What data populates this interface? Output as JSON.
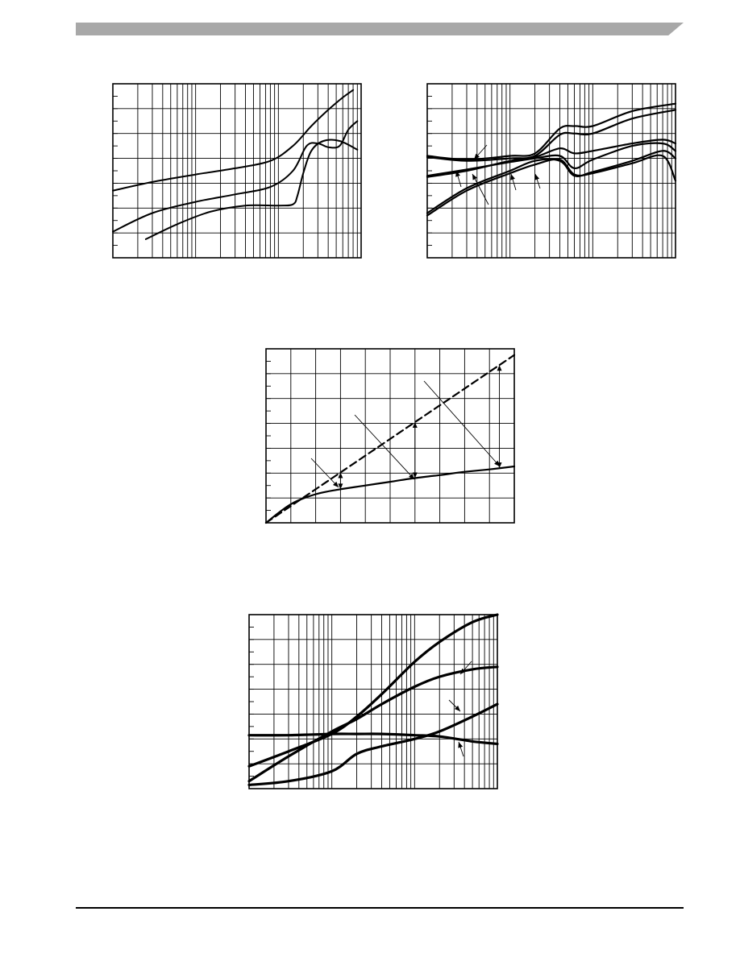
{
  "header": {
    "bar_color": "#a8a8a8"
  },
  "chart_data": [
    {
      "type": "line",
      "x_scale": "log",
      "xlim": [
        0.1,
        100
      ],
      "ylim": [
        0,
        7
      ],
      "y_divisions": 7,
      "grid": true,
      "series": [
        {
          "x": [
            0.1,
            0.3,
            1,
            3,
            8,
            15,
            25,
            40,
            60,
            80
          ],
          "y": [
            2.7,
            3.05,
            3.35,
            3.6,
            3.9,
            4.5,
            5.3,
            5.95,
            6.45,
            6.75
          ]
        },
        {
          "x": [
            0.1,
            0.3,
            1,
            3,
            8,
            15,
            22,
            30,
            40,
            55,
            70,
            90
          ],
          "y": [
            1.05,
            1.8,
            2.25,
            2.55,
            2.85,
            3.5,
            4.5,
            4.6,
            4.45,
            4.5,
            5.15,
            5.5
          ]
        },
        {
          "x": [
            0.25,
            0.6,
            1.5,
            4,
            10,
            15,
            17,
            20,
            25,
            35,
            55,
            90
          ],
          "y": [
            0.75,
            1.35,
            1.85,
            2.1,
            2.1,
            2.15,
            2.5,
            3.4,
            4.3,
            4.7,
            4.7,
            4.35
          ]
        }
      ]
    },
    {
      "type": "line",
      "x_scale": "log",
      "xlim": [
        1,
        1000
      ],
      "ylim": [
        0,
        7
      ],
      "y_divisions": 7,
      "grid": true,
      "series": [
        {
          "x": [
            1,
            3,
            10,
            20,
            40,
            60,
            100,
            300,
            1000
          ],
          "y": [
            4.1,
            3.95,
            4.1,
            4.2,
            5.2,
            5.3,
            5.3,
            5.9,
            6.2
          ]
        },
        {
          "x": [
            1,
            3,
            10,
            20,
            40,
            60,
            100,
            300,
            1000
          ],
          "y": [
            4.05,
            3.9,
            4.0,
            4.1,
            4.95,
            5.0,
            5.0,
            5.6,
            5.95
          ]
        },
        {
          "x": [
            1,
            3,
            10,
            20,
            40,
            60,
            100,
            300,
            700,
            1000
          ],
          "y": [
            3.25,
            3.5,
            3.9,
            4.05,
            4.4,
            4.2,
            4.3,
            4.6,
            4.75,
            4.6
          ]
        },
        {
          "x": [
            1,
            3,
            10,
            20,
            40,
            60,
            100,
            300,
            700,
            1000
          ],
          "y": [
            3.3,
            3.55,
            3.85,
            4.0,
            4.1,
            3.6,
            3.95,
            4.5,
            4.6,
            4.3
          ]
        },
        {
          "x": [
            1,
            3,
            10,
            20,
            40,
            60,
            100,
            300,
            700,
            1000
          ],
          "y": [
            1.8,
            2.8,
            3.5,
            3.9,
            3.9,
            3.3,
            3.45,
            3.9,
            4.3,
            4.0
          ]
        },
        {
          "x": [
            1,
            3,
            10,
            20,
            40,
            60,
            100,
            300,
            700,
            1000
          ],
          "y": [
            1.7,
            2.7,
            3.4,
            3.75,
            3.95,
            3.35,
            3.4,
            3.8,
            4.1,
            3.1
          ]
        }
      ]
    },
    {
      "type": "line",
      "x_scale": "linear",
      "xlim": [
        0,
        10
      ],
      "ylim": [
        0,
        7
      ],
      "x_divisions": 10,
      "y_divisions": 7,
      "grid": true,
      "series": [
        {
          "style": "dashed",
          "x": [
            0,
            10
          ],
          "y": [
            0,
            6.75
          ]
        },
        {
          "style": "solid",
          "x": [
            0,
            1,
            2,
            3,
            4,
            5,
            6,
            7,
            8,
            9,
            10
          ],
          "y": [
            0,
            0.75,
            1.15,
            1.35,
            1.5,
            1.65,
            1.8,
            1.92,
            2.05,
            2.15,
            2.27
          ]
        }
      ]
    },
    {
      "type": "line",
      "x_scale": "log",
      "xlim": [
        0.1,
        100
      ],
      "ylim": [
        0,
        7
      ],
      "y_divisions": 7,
      "grid": true,
      "series": [
        {
          "x": [
            0.1,
            0.3,
            1,
            2,
            4,
            10,
            20,
            50,
            100
          ],
          "y": [
            0.9,
            1.5,
            2.2,
            2.9,
            3.8,
            5.1,
            5.9,
            6.7,
            7.0
          ]
        },
        {
          "x": [
            0.1,
            0.3,
            1,
            2,
            4,
            10,
            20,
            50,
            100
          ],
          "y": [
            0.3,
            1.3,
            2.3,
            2.8,
            3.4,
            4.1,
            4.5,
            4.8,
            4.9
          ]
        },
        {
          "x": [
            0.1,
            0.3,
            1,
            2,
            4,
            10,
            20,
            50,
            100
          ],
          "y": [
            2.15,
            2.15,
            2.2,
            2.2,
            2.2,
            2.15,
            2.1,
            1.9,
            1.8
          ]
        },
        {
          "x": [
            0.1,
            0.3,
            1,
            2,
            4,
            10,
            20,
            50,
            100
          ],
          "y": [
            0.15,
            0.3,
            0.7,
            1.4,
            1.7,
            2.0,
            2.3,
            2.9,
            3.4
          ]
        }
      ]
    }
  ]
}
